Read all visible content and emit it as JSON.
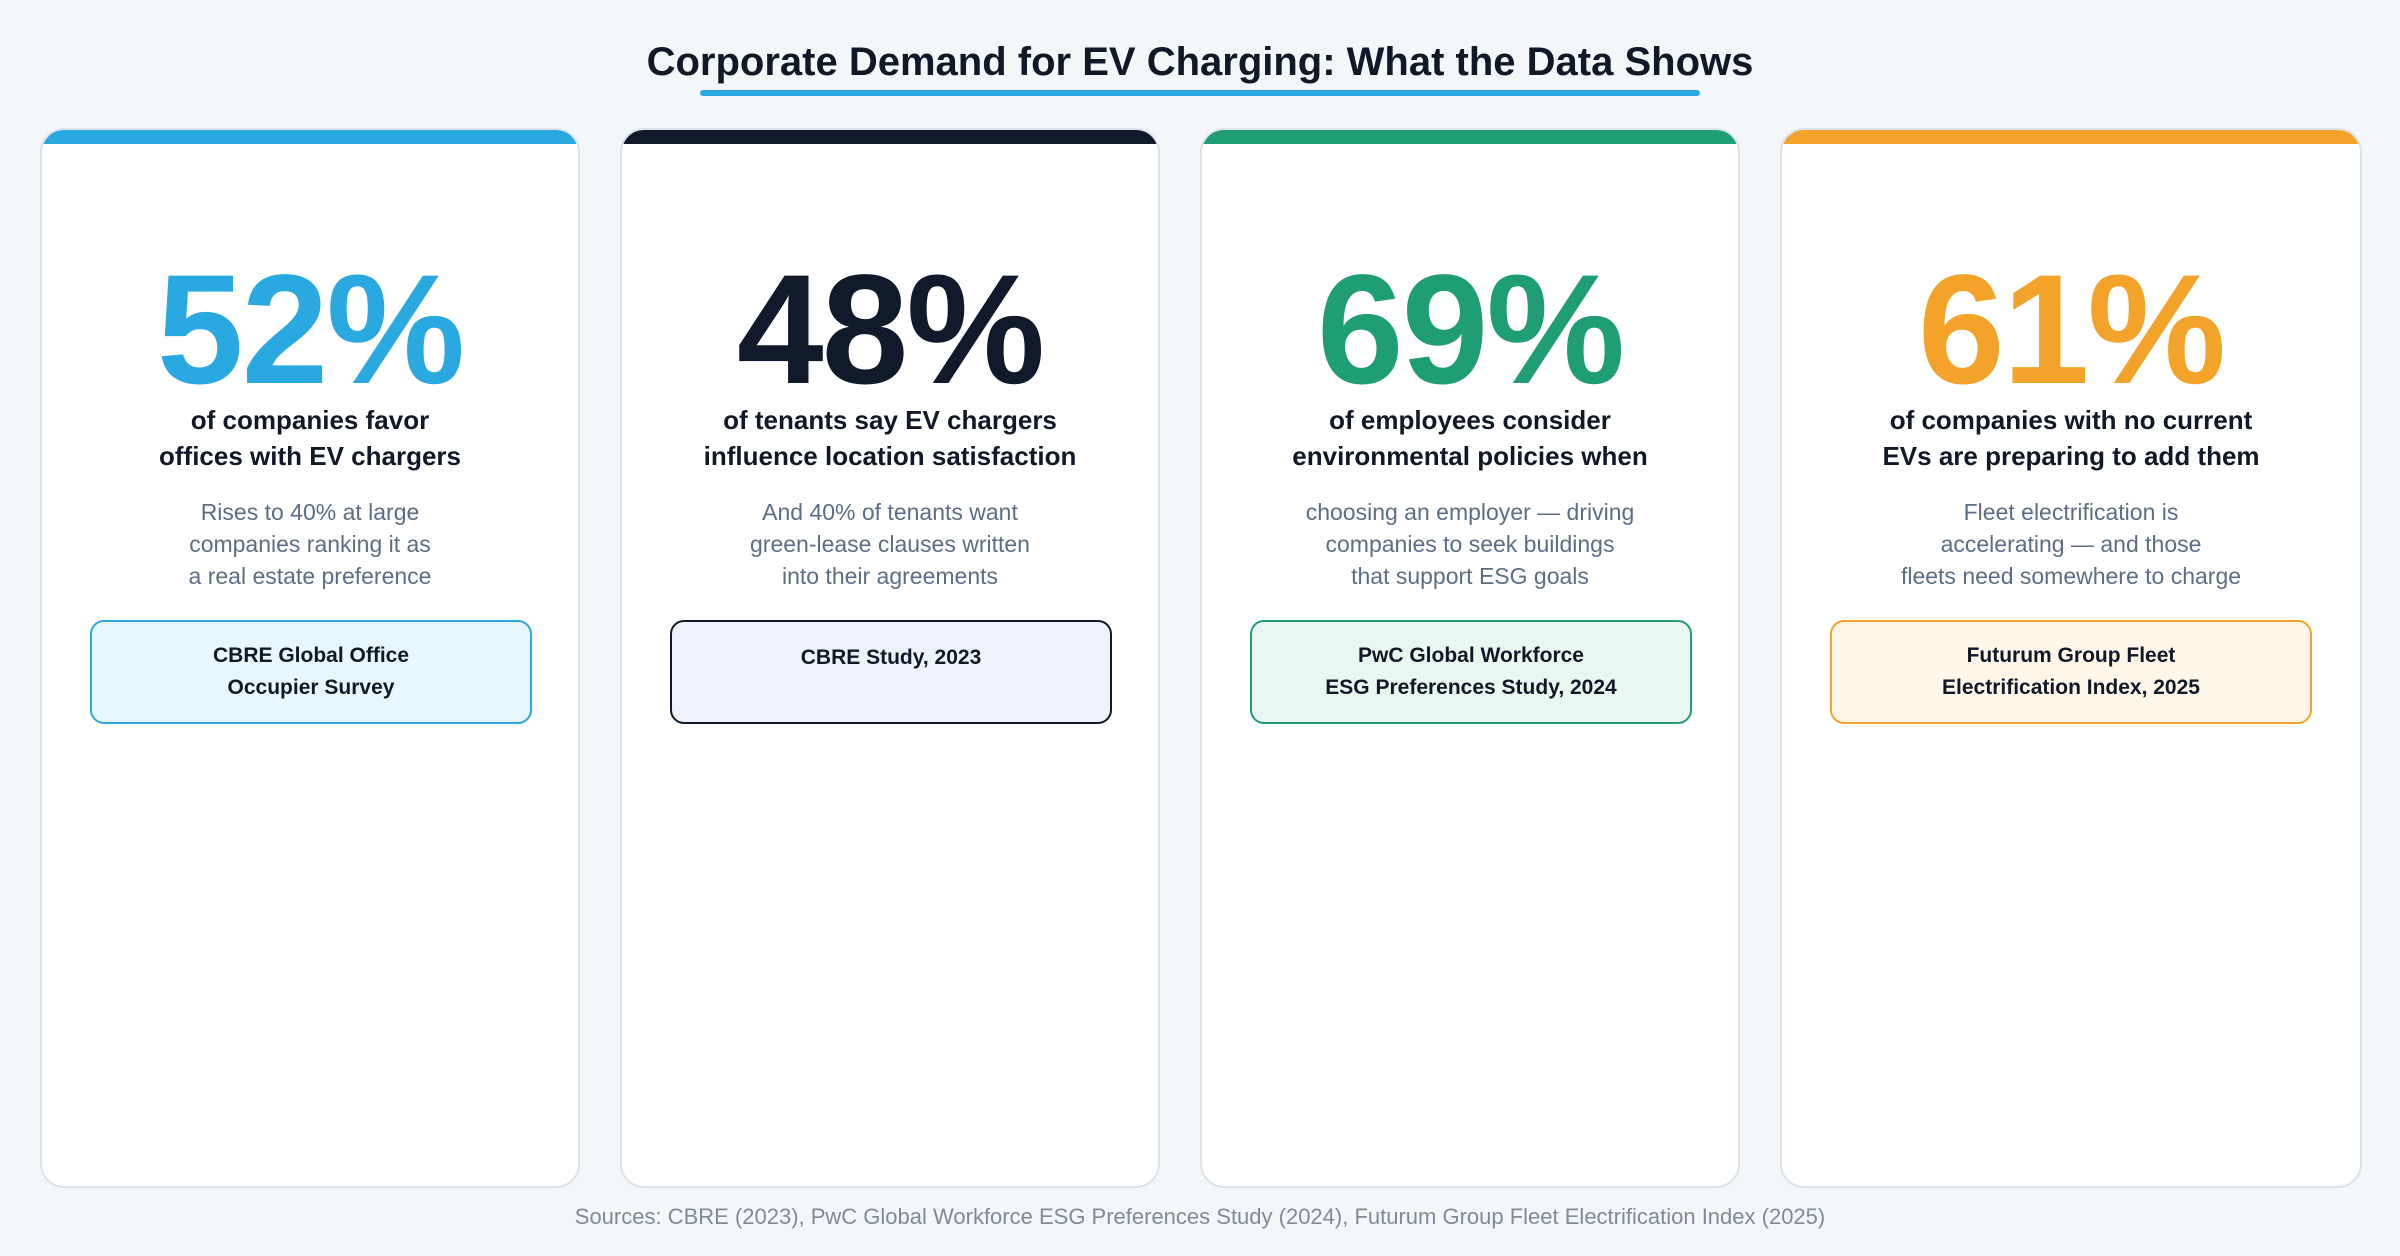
{
  "title": "Corporate Demand for EV Charging: What the Data Shows",
  "colors": {
    "blue": "#2aa9e0",
    "navy": "#111a2b",
    "green": "#1f9e74",
    "orange": "#f4a32a"
  },
  "cards": [
    {
      "stat": "52%",
      "headline_1": "of companies favor",
      "headline_2": "offices with EV chargers",
      "detail_1": "Rises to 40% at large",
      "detail_2": "companies ranking it as",
      "detail_3": "a real estate preference",
      "source_1": "CBRE Global Office",
      "source_2": "Occupier Survey"
    },
    {
      "stat": "48%",
      "headline_1": "of tenants say EV chargers",
      "headline_2": "influence location satisfaction",
      "detail_1": "And 40% of tenants want",
      "detail_2": "green-lease clauses written",
      "detail_3": "into their agreements",
      "source_1": "CBRE Study, 2023",
      "source_2": ""
    },
    {
      "stat": "69%",
      "headline_1": "of employees consider",
      "headline_2": "environmental policies when",
      "detail_1": "choosing an employer — driving",
      "detail_2": "companies to seek buildings",
      "detail_3": "that support ESG goals",
      "source_1": "PwC Global Workforce",
      "source_2": "ESG Preferences Study, 2024"
    },
    {
      "stat": "61%",
      "headline_1": "of companies with no current",
      "headline_2": "EVs are preparing to add them",
      "detail_1": "Fleet electrification is",
      "detail_2": "accelerating — and those",
      "detail_3": "fleets need somewhere to charge",
      "source_1": "Futurum Group Fleet",
      "source_2": "Electrification Index, 2025"
    }
  ],
  "footer": "Sources: CBRE (2023), PwC Global Workforce ESG Preferences Study (2024), Futurum Group Fleet Electrification Index (2025)"
}
